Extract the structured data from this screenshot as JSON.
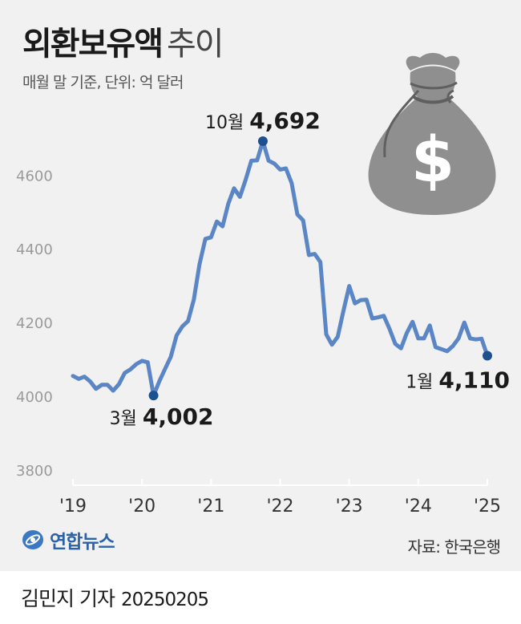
{
  "header": {
    "title_bold": "외환보유액",
    "title_light": "추이",
    "subtitle": "매월 말 기준, 단위: 억 달러"
  },
  "footer": {
    "logo_text": "연합뉴스",
    "source": "자료: 한국은행",
    "reporter": "김민지 기자",
    "date": "20250205"
  },
  "chart_data": {
    "type": "line",
    "title": "외환보유액 추이",
    "subtitle": "매월 말 기준, 단위: 억 달러",
    "ylim": [
      3800,
      4700
    ],
    "yticks": [
      3800,
      4000,
      4200,
      4400,
      4600
    ],
    "xticks": [
      "'19",
      "'20",
      "'21",
      "'22",
      "'23",
      "'24",
      "'25"
    ],
    "xlim": [
      2019,
      2025.083
    ],
    "grid": false,
    "color": "#5b86c5",
    "marker_color": "#1e4f8e",
    "series": [
      {
        "x": [
          2019,
          2019.083,
          2019.167,
          2019.25,
          2019.333,
          2019.417,
          2019.5,
          2019.583,
          2019.667,
          2019.75,
          2019.833,
          2019.917,
          2020,
          2020.083,
          2020.167,
          2020.25,
          2020.333,
          2020.417,
          2020.5,
          2020.583,
          2020.667,
          2020.75,
          2020.833,
          2020.917,
          2021,
          2021.083,
          2021.167,
          2021.25,
          2021.333,
          2021.417,
          2021.5,
          2021.583,
          2021.667,
          2021.75,
          2021.833,
          2021.917,
          2022,
          2022.083,
          2022.167,
          2022.25,
          2022.333,
          2022.417,
          2022.5,
          2022.583,
          2022.667,
          2022.75,
          2022.833,
          2022.917,
          2023,
          2023.083,
          2023.167,
          2023.25,
          2023.333,
          2023.417,
          2023.5,
          2023.583,
          2023.667,
          2023.75,
          2023.833,
          2023.917,
          2024,
          2024.083,
          2024.167,
          2024.25,
          2024.333,
          2024.417,
          2024.5,
          2024.583,
          2024.667,
          2024.75,
          2024.833,
          2024.917,
          2025
        ],
        "y": [
          4055,
          4047,
          4053,
          4040,
          4020,
          4031,
          4031,
          4015,
          4033,
          4063,
          4073,
          4087,
          4096,
          4092,
          4002,
          4040,
          4074,
          4107,
          4165,
          4189,
          4204,
          4262,
          4358,
          4427,
          4431,
          4474,
          4461,
          4523,
          4564,
          4541,
          4587,
          4639,
          4640,
          4692,
          4639,
          4631,
          4615,
          4618,
          4578,
          4493,
          4477,
          4383,
          4386,
          4364,
          4168,
          4140,
          4161,
          4232,
          4299,
          4252,
          4261,
          4262,
          4211,
          4214,
          4218,
          4183,
          4142,
          4130,
          4171,
          4202,
          4157,
          4157,
          4192,
          4133,
          4128,
          4122,
          4136,
          4157,
          4200,
          4157,
          4154,
          4156,
          4110
        ]
      }
    ],
    "annotations": [
      {
        "label": "3월",
        "value": "4,002",
        "x": 2020.167,
        "y": 4002,
        "anchor": "below"
      },
      {
        "label": "10월",
        "value": "4,692",
        "x": 2021.75,
        "y": 4692,
        "anchor": "above"
      },
      {
        "label": "1월",
        "value": "4,110",
        "x": 2025,
        "y": 4110,
        "anchor": "below-left"
      }
    ]
  }
}
